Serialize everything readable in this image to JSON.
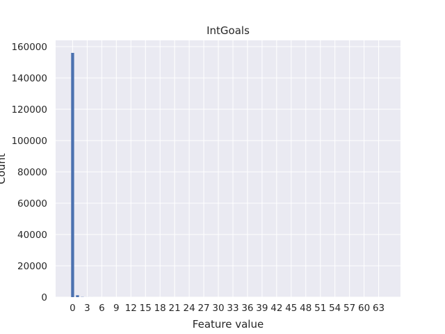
{
  "chart_data": {
    "type": "bar",
    "title": "IntGoals",
    "xlabel": "Feature value",
    "ylabel": "Count",
    "x": [
      0,
      1,
      2,
      3,
      4
    ],
    "values": [
      156000,
      1200,
      120,
      20,
      5
    ],
    "xlim": [
      -3.5,
      67.5
    ],
    "ylim": [
      0,
      164000
    ],
    "xticks": [
      0,
      3,
      6,
      9,
      12,
      15,
      18,
      21,
      24,
      27,
      30,
      33,
      36,
      39,
      42,
      45,
      48,
      51,
      54,
      57,
      60,
      63
    ],
    "yticks": [
      0,
      20000,
      40000,
      60000,
      80000,
      100000,
      120000,
      140000,
      160000
    ],
    "bar_color": "#4c72b0",
    "background_color": "#eaeaf2",
    "grid_color": "#ffffff",
    "grid": true
  }
}
